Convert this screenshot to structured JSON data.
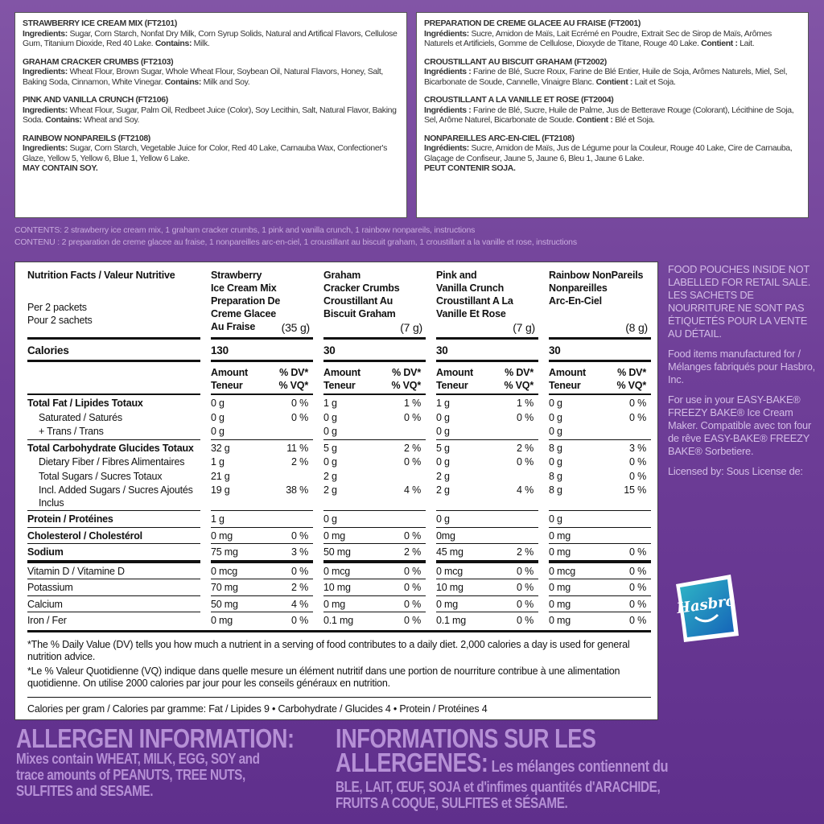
{
  "ingredients_en": [
    {
      "title": "STRAWBERRY ICE CREAM MIX (FT2101)",
      "ing_label": "Ingredients:",
      "ing": " Sugar, Corn Starch, Nonfat Dry Milk, Corn Syrup Solids, Natural and Artifical Flavors, Cellulose Gum, Titanium Dioxide, Red 40 Lake. ",
      "contains_label": "Contains:",
      "contains": " Milk."
    },
    {
      "title": "GRAHAM CRACKER CRUMBS (FT2103)",
      "ing_label": "Ingredients:",
      "ing": " Wheat Flour, Brown Sugar, Whole Wheat Flour, Soybean Oil, Natural Flavors, Honey, Salt, Baking Soda, Cinnamon, White Vinegar. ",
      "contains_label": "Contains:",
      "contains": " Milk and Soy."
    },
    {
      "title": "PINK AND VANILLA CRUNCH (FT2106)",
      "ing_label": "Ingredients:",
      "ing": " Wheat Flour, Sugar, Palm Oil, Redbeet Juice (Color), Soy Lecithin, Salt, Natural Flavor, Baking Soda. ",
      "contains_label": "Contains:",
      "contains": " Wheat and Soy."
    },
    {
      "title": "RAINBOW NONPAREILS (FT2108)",
      "ing_label": "Ingredients:",
      "ing": " Sugar, Corn Starch, Vegetable Juice for Color, Red 40 Lake, Carnauba Wax, Confectioner's Glaze, Yellow 5, Yellow 6, Blue 1, Yellow 6 Lake.",
      "contains_label": "",
      "contains": "",
      "note": "MAY CONTAIN SOY."
    }
  ],
  "ingredients_fr": [
    {
      "title": "PREPARATION DE CREME GLACEE AU FRAISE (FT2001)",
      "ing_label": "Ingrédients:",
      "ing": " Sucre, Amidon de Maïs, Lait Ecrémé en Poudre, Extrait Sec de Sirop de Maïs, Arômes Naturels et Artificiels, Gomme de Cellulose, Dioxyde de Titane, Rouge 40 Lake. ",
      "contains_label": "Contient :",
      "contains": " Lait."
    },
    {
      "title": "CROUSTILLANT AU BISCUIT GRAHAM (FT2002)",
      "ing_label": "Ingrédients :",
      "ing": " Farine de Blé, Sucre Roux, Farine de Blé Entier, Huile de Soja, Arômes Naturels, Miel, Sel, Bicarbonate de Soude, Cannelle, Vinaigre Blanc. ",
      "contains_label": "Contient :",
      "contains": " Lait et Soja."
    },
    {
      "title": "CROUSTILLANT A LA VANILLE ET ROSE (FT2004)",
      "ing_label": "Ingrédients :",
      "ing": " Farine de Blé, Sucre, Huile de Palme, Jus de Betterave Rouge (Colorant), Lécithine de Soja, Sel, Arôme Naturel, Bicarbonate de Soude. ",
      "contains_label": "Contient :",
      "contains": " Blé et Soja."
    },
    {
      "title": "NONPAREILLES ARC-EN-CIEL (FT2108)",
      "ing_label": "Ingrédients:",
      "ing": " Sucre, Amidon de Maïs, Jus de Légume pour la Couleur, Rouge 40 Lake, Cire de Carnauba, Glaçage de Confiseur, Jaune 5, Jaune 6, Bleu 1, Jaune 6 Lake.",
      "contains_label": "",
      "contains": "",
      "note": "PEUT CONTENIR SOJA."
    }
  ],
  "contents": {
    "en": "CONTENTS: 2 strawberry ice cream mix, 1 graham cracker crumbs, 1 pink and vanilla crunch, 1 rainbow nonpareils, instructions",
    "fr": "CONTENU : 2 preparation de creme glacee au fraise, 1 nonpareilles arc-en-ciel, 1 croustillant au biscuit graham, 1 croustillant a la vanille et rose, instructions"
  },
  "nutrition": {
    "title": "Nutrition Facts / Valeur Nutritive",
    "per_en": "Per 2 packets",
    "per_fr": "Pour 2 sachets",
    "products": [
      {
        "name": [
          "Strawberry",
          "Ice Cream Mix",
          "Preparation De",
          "Creme Glacee",
          "Au Fraise"
        ],
        "size": "(35 g)",
        "calories": "130"
      },
      {
        "name": [
          "Graham",
          "Cracker Crumbs",
          "Croustillant Au",
          "Biscuit Graham"
        ],
        "size": "(7 g)",
        "calories": "30"
      },
      {
        "name": [
          "Pink and",
          "Vanilla Crunch",
          "Croustillant A La",
          "Vanille Et Rose"
        ],
        "size": "(7 g)",
        "calories": "30"
      },
      {
        "name": [
          "Rainbow NonPareils",
          "Nonpareilles",
          "Arc-En-Ciel"
        ],
        "size": "(8 g)",
        "calories": "30"
      }
    ],
    "calories_label": "Calories",
    "amount_en": "Amount",
    "amount_fr": "Teneur",
    "dv_en": "% DV*",
    "dv_fr": "% VQ*",
    "groups": [
      {
        "rule": "thin",
        "rows": [
          {
            "label": "Total Fat / Lipides Totaux",
            "bold": true,
            "values": [
              [
                "0 g",
                "0 %"
              ],
              [
                "1 g",
                "1 %"
              ],
              [
                "1 g",
                "1 %"
              ],
              [
                "0 g",
                "0 %"
              ]
            ]
          },
          {
            "label": "Saturated / Saturés",
            "indent": true,
            "values": [
              [
                "0 g",
                "0 %"
              ],
              [
                "0 g",
                "0 %"
              ],
              [
                "0 g",
                "0 %"
              ],
              [
                "0 g",
                "0 %"
              ]
            ]
          },
          {
            "label": "+ Trans / Trans",
            "indent": true,
            "values": [
              [
                "0 g",
                ""
              ],
              [
                "0 g",
                ""
              ],
              [
                "0 g",
                ""
              ],
              [
                "0 g",
                ""
              ]
            ]
          }
        ]
      },
      {
        "rule": "thin",
        "rows": [
          {
            "label": "Total Carbohydrate Glucides Totaux",
            "bold": true,
            "values": [
              [
                "32 g",
                "11 %"
              ],
              [
                "5 g",
                "2 %"
              ],
              [
                "5 g",
                "2 %"
              ],
              [
                "8 g",
                "3 %"
              ]
            ]
          },
          {
            "label": "Dietary Fiber / Fibres Alimentaires",
            "indent": true,
            "values": [
              [
                "1 g",
                "2 %"
              ],
              [
                "0 g",
                "0 %"
              ],
              [
                "0 g",
                "0 %"
              ],
              [
                "0 g",
                "0 %"
              ]
            ]
          },
          {
            "label": "Total Sugars / Sucres Totaux",
            "indent": true,
            "values": [
              [
                "21 g",
                ""
              ],
              [
                "2 g",
                ""
              ],
              [
                "2 g",
                ""
              ],
              [
                "8 g",
                "0 %"
              ]
            ]
          },
          {
            "label": "Incl. Added Sugars / Sucres Ajoutés Inclus",
            "indent": true,
            "values": [
              [
                "19 g",
                "38 %"
              ],
              [
                "2 g",
                "4 %"
              ],
              [
                "2 g",
                "4 %"
              ],
              [
                "8 g",
                "15 %"
              ]
            ]
          }
        ]
      },
      {
        "rule": "thin",
        "rows": [
          {
            "label": "Protein / Protéines",
            "bold": true,
            "values": [
              [
                "1 g",
                ""
              ],
              [
                "0 g",
                ""
              ],
              [
                "0 g",
                ""
              ],
              [
                "0 g",
                ""
              ]
            ]
          }
        ]
      },
      {
        "rule": "thin",
        "rows": [
          {
            "label": "Cholesterol / Cholestérol",
            "bold": true,
            "values": [
              [
                "0 mg",
                "0 %"
              ],
              [
                "0 mg",
                "0 %"
              ],
              [
                "0mg",
                ""
              ],
              [
                "0 mg",
                ""
              ]
            ]
          }
        ]
      },
      {
        "rule": "thin",
        "rows": [
          {
            "label": "Sodium",
            "bold": true,
            "values": [
              [
                "75 mg",
                "3 %"
              ],
              [
                "50 mg",
                "2 %"
              ],
              [
                "45 mg",
                "2 %"
              ],
              [
                "0 mg",
                "0 %"
              ]
            ]
          }
        ]
      },
      {
        "rule": "thick",
        "rows": [
          {
            "label": "Vitamin D / Vitamine D",
            "values": [
              [
                "0 mcg",
                "0 %"
              ],
              [
                "0 mcg",
                "0 %"
              ],
              [
                "0 mcg",
                "0 %"
              ],
              [
                "0 mcg",
                "0 %"
              ]
            ]
          }
        ]
      },
      {
        "rule": "thin",
        "rows": [
          {
            "label": "Potassium",
            "values": [
              [
                "70 mg",
                "2 %"
              ],
              [
                "10 mg",
                "0 %"
              ],
              [
                "10 mg",
                "0 %"
              ],
              [
                "0 mg",
                "0 %"
              ]
            ]
          }
        ]
      },
      {
        "rule": "thin",
        "rows": [
          {
            "label": "Calcium",
            "values": [
              [
                "50 mg",
                "4 %"
              ],
              [
                "0 mg",
                "0 %"
              ],
              [
                "0 mg",
                "0 %"
              ],
              [
                "0 mg",
                "0 %"
              ]
            ]
          }
        ]
      },
      {
        "rule": "thin",
        "rows": [
          {
            "label": "Iron / Fer",
            "values": [
              [
                "0 mg",
                "0 %"
              ],
              [
                "0.1 mg",
                "0 %"
              ],
              [
                "0.1 mg",
                "0 %"
              ],
              [
                "0 mg",
                "0 %"
              ]
            ]
          }
        ]
      }
    ],
    "footnote_en": "*The % Daily Value (DV) tells you how much a nutrient in a serving of food contributes to a daily diet. 2,000 calories a day is used for general nutrition advice.",
    "footnote_fr": "*Le % Valeur Quotidienne (VQ) indique dans quelle mesure un élément nutritif dans une portion de nourriture contribue à une alimentation quotidienne. On utilise 2000 calories par jour pour les conseils généraux en nutrition.",
    "calories_per_gram": "Calories per gram / Calories par gramme: Fat / Lipides 9 • Carbohydrate / Glucides 4 • Protein / Protéines 4"
  },
  "side": {
    "retail": "FOOD POUCHES INSIDE NOT LABELLED FOR RETAIL SALE. LES SACHETS DE NOURRITURE NE SONT PAS ÉTIQUETÉS POUR LA VENTE AU DÉTAIL.",
    "manufactured": "Food items manufactured for / Mélanges fabriqués pour Hasbro, Inc.",
    "use": "For use in your EASY-BAKE® FREEZY BAKE® Ice Cream Maker. Compatible avec ton four de rêve EASY-BAKE® FREEZY BAKE® Sorbetiere.",
    "licensed": "Licensed by: Sous License de:",
    "logo_text": "Hasbro",
    "logo_color": "#1a8fd0"
  },
  "allergen": {
    "en_title": "ALLERGEN INFORMATION:",
    "en_lines": [
      "Mixes contain WHEAT, MILK, EGG, SOY and",
      "trace amounts of PEANUTS, TREE NUTS,",
      "SULFITES and SESAME."
    ],
    "fr_title": "INFORMATIONS SUR LES",
    "fr_title2": "ALLERGENES:",
    "fr_line1": " Les mélanges contiennent du",
    "fr_lines": [
      "BLE, LAIT, ŒUF, SOJA et d'infimes quantités d'ARACHIDE,",
      "FRUITS A COQUE, SULFITES et SÉSAME."
    ]
  },
  "colors": {
    "background": "#6f3f98",
    "allergen_text": "#b690d6",
    "side_text": "#d4bde8"
  }
}
